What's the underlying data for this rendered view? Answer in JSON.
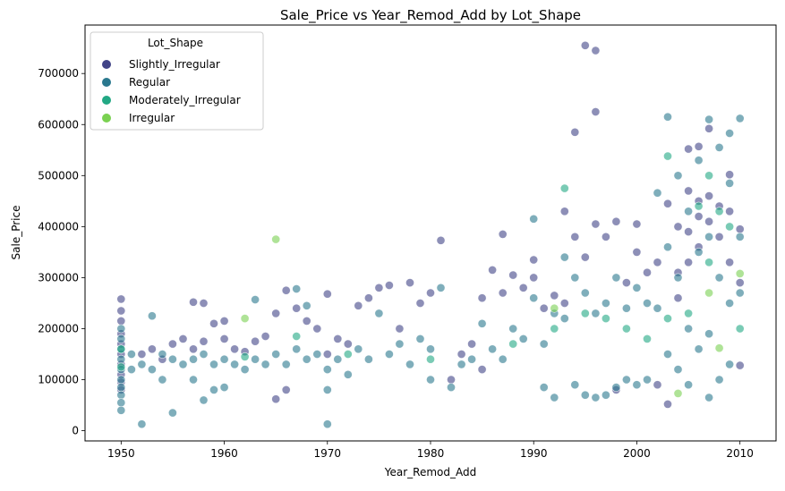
{
  "chart_data": {
    "type": "scatter",
    "title": "Sale_Price vs Year_Remod_Add by Lot_Shape",
    "xlabel": "Year_Remod_Add",
    "ylabel": "Sale_Price",
    "xlim": [
      1946.5,
      2013.5
    ],
    "ylim": [
      -20000,
      795000
    ],
    "xticks": [
      1950,
      1960,
      1970,
      1980,
      1990,
      2000,
      2010
    ],
    "yticks": [
      0,
      100000,
      200000,
      300000,
      400000,
      500000,
      600000,
      700000
    ],
    "grid": false,
    "legend": {
      "title": "Lot_Shape",
      "placement": "top-left"
    },
    "point_alpha": 0.6,
    "series": [
      {
        "name": "Slightly_Irregular",
        "color": "#414487",
        "points": [
          [
            1950,
            258000
          ],
          [
            1950,
            235000
          ],
          [
            1950,
            215000
          ],
          [
            1950,
            190000
          ],
          [
            1950,
            170000
          ],
          [
            1950,
            150000
          ],
          [
            1950,
            130000
          ],
          [
            1950,
            110000
          ],
          [
            1950,
            95000
          ],
          [
            1950,
            80000
          ],
          [
            1952,
            150000
          ],
          [
            1953,
            160000
          ],
          [
            1954,
            140000
          ],
          [
            1955,
            170000
          ],
          [
            1956,
            180000
          ],
          [
            1957,
            252000
          ],
          [
            1957,
            160000
          ],
          [
            1958,
            250000
          ],
          [
            1958,
            175000
          ],
          [
            1959,
            210000
          ],
          [
            1960,
            215000
          ],
          [
            1960,
            180000
          ],
          [
            1961,
            160000
          ],
          [
            1962,
            155000
          ],
          [
            1963,
            175000
          ],
          [
            1964,
            185000
          ],
          [
            1965,
            230000
          ],
          [
            1965,
            62000
          ],
          [
            1966,
            275000
          ],
          [
            1966,
            80000
          ],
          [
            1967,
            240000
          ],
          [
            1968,
            215000
          ],
          [
            1969,
            200000
          ],
          [
            1970,
            268000
          ],
          [
            1970,
            150000
          ],
          [
            1971,
            180000
          ],
          [
            1972,
            170000
          ],
          [
            1973,
            245000
          ],
          [
            1974,
            260000
          ],
          [
            1975,
            280000
          ],
          [
            1976,
            285000
          ],
          [
            1977,
            200000
          ],
          [
            1978,
            290000
          ],
          [
            1979,
            250000
          ],
          [
            1980,
            270000
          ],
          [
            1981,
            373000
          ],
          [
            1982,
            100000
          ],
          [
            1983,
            150000
          ],
          [
            1984,
            170000
          ],
          [
            1985,
            260000
          ],
          [
            1985,
            120000
          ],
          [
            1986,
            315000
          ],
          [
            1987,
            270000
          ],
          [
            1987,
            385000
          ],
          [
            1988,
            305000
          ],
          [
            1989,
            280000
          ],
          [
            1990,
            335000
          ],
          [
            1990,
            300000
          ],
          [
            1991,
            240000
          ],
          [
            1992,
            265000
          ],
          [
            1993,
            430000
          ],
          [
            1993,
            250000
          ],
          [
            1994,
            585000
          ],
          [
            1994,
            380000
          ],
          [
            1995,
            755000
          ],
          [
            1995,
            340000
          ],
          [
            1996,
            745000
          ],
          [
            1996,
            625000
          ],
          [
            1996,
            405000
          ],
          [
            1997,
            380000
          ],
          [
            1998,
            410000
          ],
          [
            1998,
            80000
          ],
          [
            1999,
            290000
          ],
          [
            2000,
            405000
          ],
          [
            2000,
            350000
          ],
          [
            2001,
            310000
          ],
          [
            2002,
            330000
          ],
          [
            2002,
            90000
          ],
          [
            2003,
            445000
          ],
          [
            2003,
            52000
          ],
          [
            2004,
            400000
          ],
          [
            2004,
            310000
          ],
          [
            2004,
            260000
          ],
          [
            2005,
            552000
          ],
          [
            2005,
            470000
          ],
          [
            2005,
            390000
          ],
          [
            2005,
            330000
          ],
          [
            2006,
            557000
          ],
          [
            2006,
            450000
          ],
          [
            2006,
            420000
          ],
          [
            2006,
            360000
          ],
          [
            2007,
            592000
          ],
          [
            2007,
            460000
          ],
          [
            2007,
            410000
          ],
          [
            2008,
            440000
          ],
          [
            2008,
            380000
          ],
          [
            2009,
            502000
          ],
          [
            2009,
            430000
          ],
          [
            2009,
            330000
          ],
          [
            2010,
            395000
          ],
          [
            2010,
            290000
          ],
          [
            2010,
            128000
          ]
        ]
      },
      {
        "name": "Regular",
        "color": "#2a788e",
        "points": [
          [
            1950,
            200000
          ],
          [
            1950,
            180000
          ],
          [
            1950,
            160000
          ],
          [
            1950,
            140000
          ],
          [
            1950,
            120000
          ],
          [
            1950,
            100000
          ],
          [
            1950,
            85000
          ],
          [
            1950,
            70000
          ],
          [
            1950,
            55000
          ],
          [
            1950,
            40000
          ],
          [
            1951,
            150000
          ],
          [
            1951,
            120000
          ],
          [
            1952,
            130000
          ],
          [
            1952,
            13000
          ],
          [
            1953,
            225000
          ],
          [
            1953,
            120000
          ],
          [
            1954,
            150000
          ],
          [
            1954,
            100000
          ],
          [
            1955,
            140000
          ],
          [
            1955,
            35000
          ],
          [
            1956,
            130000
          ],
          [
            1957,
            140000
          ],
          [
            1957,
            100000
          ],
          [
            1958,
            150000
          ],
          [
            1958,
            60000
          ],
          [
            1959,
            130000
          ],
          [
            1959,
            80000
          ],
          [
            1960,
            140000
          ],
          [
            1960,
            85000
          ],
          [
            1961,
            130000
          ],
          [
            1962,
            120000
          ],
          [
            1963,
            257000
          ],
          [
            1963,
            140000
          ],
          [
            1964,
            130000
          ],
          [
            1965,
            150000
          ],
          [
            1966,
            130000
          ],
          [
            1967,
            278000
          ],
          [
            1967,
            160000
          ],
          [
            1968,
            140000
          ],
          [
            1968,
            245000
          ],
          [
            1969,
            150000
          ],
          [
            1970,
            13000
          ],
          [
            1970,
            120000
          ],
          [
            1970,
            80000
          ],
          [
            1971,
            140000
          ],
          [
            1972,
            110000
          ],
          [
            1973,
            160000
          ],
          [
            1974,
            140000
          ],
          [
            1975,
            230000
          ],
          [
            1976,
            150000
          ],
          [
            1977,
            170000
          ],
          [
            1978,
            130000
          ],
          [
            1979,
            180000
          ],
          [
            1980,
            160000
          ],
          [
            1980,
            100000
          ],
          [
            1981,
            280000
          ],
          [
            1982,
            85000
          ],
          [
            1983,
            130000
          ],
          [
            1984,
            140000
          ],
          [
            1985,
            210000
          ],
          [
            1986,
            160000
          ],
          [
            1987,
            140000
          ],
          [
            1988,
            200000
          ],
          [
            1989,
            180000
          ],
          [
            1990,
            415000
          ],
          [
            1990,
            260000
          ],
          [
            1991,
            170000
          ],
          [
            1991,
            85000
          ],
          [
            1992,
            230000
          ],
          [
            1992,
            65000
          ],
          [
            1993,
            340000
          ],
          [
            1993,
            220000
          ],
          [
            1994,
            300000
          ],
          [
            1994,
            90000
          ],
          [
            1995,
            270000
          ],
          [
            1995,
            70000
          ],
          [
            1996,
            230000
          ],
          [
            1996,
            65000
          ],
          [
            1997,
            250000
          ],
          [
            1997,
            70000
          ],
          [
            1998,
            300000
          ],
          [
            1998,
            85000
          ],
          [
            1999,
            240000
          ],
          [
            1999,
            100000
          ],
          [
            2000,
            280000
          ],
          [
            2000,
            90000
          ],
          [
            2001,
            250000
          ],
          [
            2001,
            100000
          ],
          [
            2002,
            466000
          ],
          [
            2002,
            240000
          ],
          [
            2003,
            615000
          ],
          [
            2003,
            360000
          ],
          [
            2003,
            150000
          ],
          [
            2004,
            500000
          ],
          [
            2004,
            300000
          ],
          [
            2004,
            120000
          ],
          [
            2005,
            430000
          ],
          [
            2005,
            200000
          ],
          [
            2005,
            90000
          ],
          [
            2006,
            530000
          ],
          [
            2006,
            350000
          ],
          [
            2006,
            160000
          ],
          [
            2007,
            610000
          ],
          [
            2007,
            380000
          ],
          [
            2007,
            190000
          ],
          [
            2007,
            65000
          ],
          [
            2008,
            555000
          ],
          [
            2008,
            300000
          ],
          [
            2008,
            100000
          ],
          [
            2009,
            583000
          ],
          [
            2009,
            485000
          ],
          [
            2009,
            250000
          ],
          [
            2009,
            130000
          ],
          [
            2010,
            612000
          ],
          [
            2010,
            380000
          ],
          [
            2010,
            270000
          ]
        ]
      },
      {
        "name": "Moderately_Irregular",
        "color": "#22a884",
        "points": [
          [
            1950,
            160000
          ],
          [
            1950,
            125000
          ],
          [
            1962,
            145000
          ],
          [
            1967,
            185000
          ],
          [
            1972,
            150000
          ],
          [
            1980,
            140000
          ],
          [
            1988,
            170000
          ],
          [
            1992,
            200000
          ],
          [
            1993,
            475000
          ],
          [
            1995,
            230000
          ],
          [
            1997,
            220000
          ],
          [
            1999,
            200000
          ],
          [
            2001,
            180000
          ],
          [
            2003,
            538000
          ],
          [
            2003,
            220000
          ],
          [
            2005,
            230000
          ],
          [
            2006,
            440000
          ],
          [
            2007,
            500000
          ],
          [
            2007,
            330000
          ],
          [
            2008,
            430000
          ],
          [
            2009,
            400000
          ],
          [
            2010,
            200000
          ]
        ]
      },
      {
        "name": "Irregular",
        "color": "#7ad151",
        "points": [
          [
            1962,
            220000
          ],
          [
            1965,
            375000
          ],
          [
            1992,
            240000
          ],
          [
            2004,
            73000
          ],
          [
            2007,
            270000
          ],
          [
            2008,
            162000
          ],
          [
            2010,
            308000
          ]
        ]
      }
    ]
  }
}
